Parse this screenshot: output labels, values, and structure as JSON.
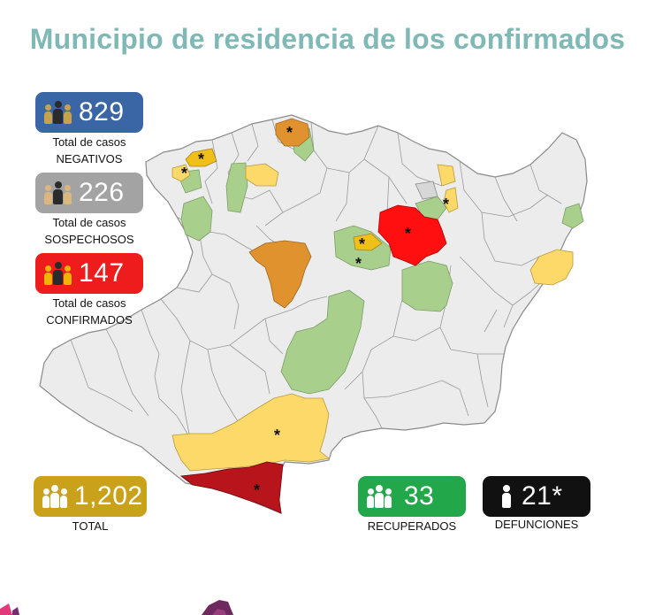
{
  "title": "Municipio de residencia de los confirmados",
  "stats": {
    "negativos": {
      "value": "829",
      "line1": "Total de casos",
      "line2": "NEGATIVOS",
      "color": "#3a66a6",
      "icon_color": "#2b2b2b",
      "icon_accent": "#c8a24a"
    },
    "sospechosos": {
      "value": "226",
      "line1": "Total de casos",
      "line2": "SOSPECHOSOS",
      "color": "#a3a3a3",
      "icon_color": "#2b2b2b",
      "icon_accent": "#d9b77e"
    },
    "confirmados": {
      "value": "147",
      "line1": "Total de casos",
      "line2": "CONFIRMADOS",
      "color": "#ee1c1c",
      "icon_color": "#2b2b2b",
      "icon_accent": "#f0b400"
    },
    "total": {
      "value": "1,202",
      "label": "TOTAL",
      "color": "#c9a11a"
    },
    "recuperados": {
      "value": "33",
      "label": "RECUPERADOS",
      "color": "#22a84b"
    },
    "defunciones": {
      "value": "21*",
      "label": "DEFUNCIONES",
      "color": "#111111"
    }
  },
  "map_legend_colors": {
    "base": "#ececec",
    "recovered": "#a9cf8c",
    "low": "#fdd96a",
    "medium_low": "#f0bf1a",
    "medium": "#e0922e",
    "high": "#ff0f0f",
    "very_high": "#b8141c",
    "border": "#8a8a8a"
  },
  "map_star": "*"
}
